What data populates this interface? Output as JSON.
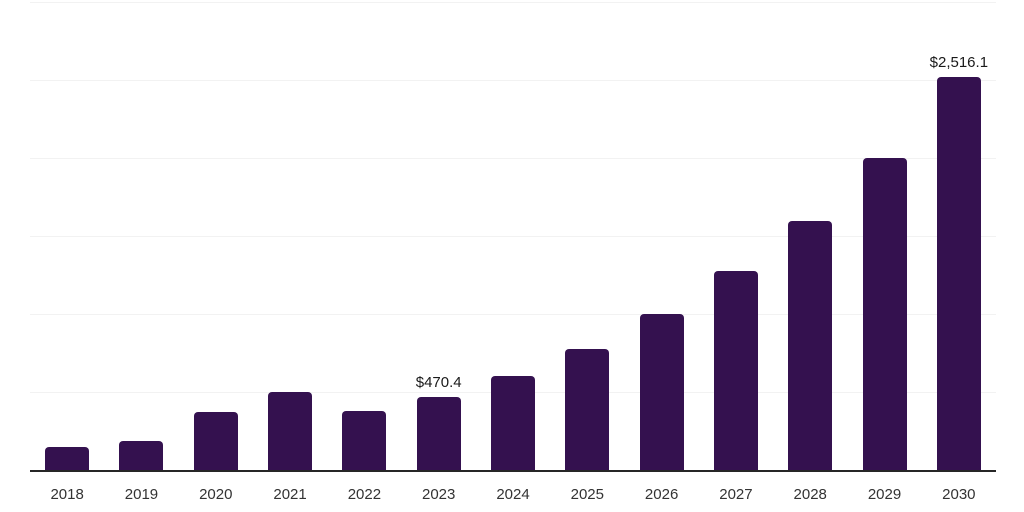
{
  "chart_data": {
    "type": "bar",
    "title": "",
    "xlabel": "",
    "ylabel": "",
    "categories": [
      "2018",
      "2019",
      "2020",
      "2021",
      "2022",
      "2023",
      "2024",
      "2025",
      "2026",
      "2027",
      "2028",
      "2029",
      "2030"
    ],
    "values": [
      148,
      184,
      375,
      499,
      381,
      470.4,
      605,
      776,
      999,
      1274,
      1599,
      2003,
      2516.1
    ],
    "annotations": [
      {
        "index": 5,
        "text": "$470.4"
      },
      {
        "index": 12,
        "text": "$2,516.1"
      }
    ],
    "ylim": [
      0,
      3000
    ],
    "grid_step": 500,
    "grid": "horizontal-only",
    "legend": "none",
    "y_tick_labels_visible": false,
    "colors": {
      "bar": "#34114F",
      "gridline": "#f2f2f2",
      "axis_line": "#262626",
      "value_label": "#1a1a1a",
      "tick_label": "#333333",
      "background": "#ffffff"
    }
  }
}
